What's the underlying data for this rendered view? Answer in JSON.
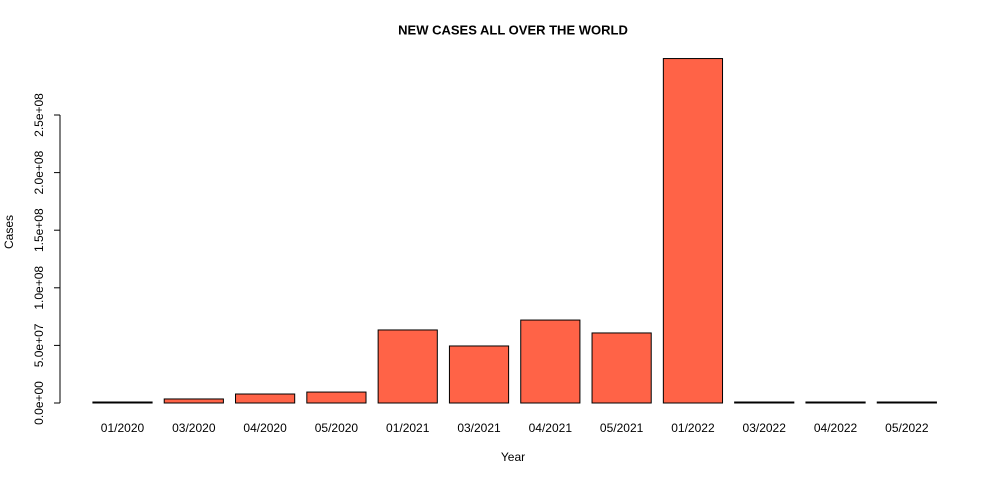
{
  "chart_data": {
    "type": "bar",
    "title": "NEW CASES ALL OVER THE WORLD",
    "x_label": "Year",
    "y_label": "Cases",
    "categories": [
      "01/2020",
      "03/2020",
      "04/2020",
      "05/2020",
      "01/2021",
      "03/2021",
      "04/2021",
      "05/2021",
      "01/2022",
      "03/2022",
      "04/2022",
      "05/2022"
    ],
    "values": [
      10000,
      3500000,
      7800000,
      9500000,
      63400000,
      49500000,
      72000000,
      60800000,
      299000000,
      50000,
      50000,
      50000
    ],
    "color": "#ff6347",
    "ylim": [
      0,
      310000000
    ],
    "yticks": [
      {
        "value": 0,
        "label": "0.0e+00"
      },
      {
        "value": 50000000,
        "label": "5.0e+07"
      },
      {
        "value": 100000000,
        "label": "1.0e+08"
      },
      {
        "value": 150000000,
        "label": "1.5e+08"
      },
      {
        "value": 200000000,
        "label": "2.0e+08"
      },
      {
        "value": 250000000,
        "label": "2.5e+08"
      }
    ],
    "grid": false
  }
}
